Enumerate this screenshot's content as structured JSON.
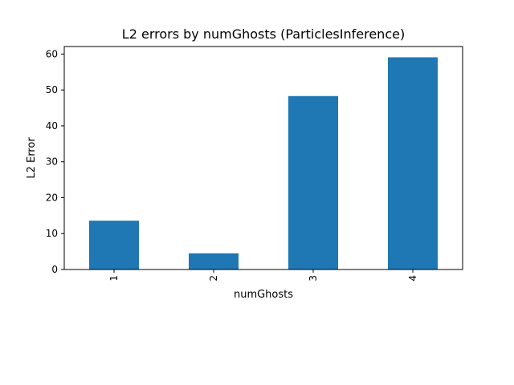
{
  "chart_data": {
    "type": "bar",
    "title": "L2 errors by numGhosts (ParticlesInference)",
    "xlabel": "numGhosts",
    "ylabel": "L2 Error",
    "categories": [
      "1",
      "2",
      "3",
      "4"
    ],
    "values": [
      13.6,
      4.5,
      48.3,
      59.1
    ],
    "ylim": [
      0,
      62.1
    ],
    "yticks": [
      0,
      10,
      20,
      30,
      40,
      50,
      60
    ],
    "bar_color": "#1f77b4",
    "grid": false,
    "legend": "none",
    "xtick_rotation": "vertical"
  }
}
